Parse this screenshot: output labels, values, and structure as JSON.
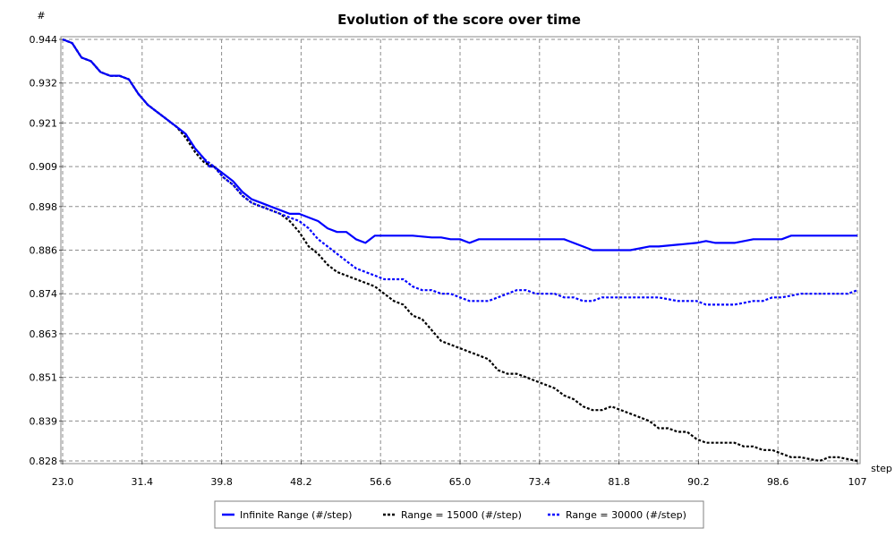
{
  "chart_data": {
    "type": "line",
    "title": "Evolution of the score over time",
    "xlabel": "step",
    "ylabel": "#",
    "xlim": [
      23.0,
      107.0
    ],
    "ylim": [
      0.828,
      0.944
    ],
    "x_ticks": [
      "23.0",
      "31.4",
      "39.8",
      "48.2",
      "56.6",
      "65.0",
      "73.4",
      "81.8",
      "90.2",
      "98.6",
      "107"
    ],
    "x_tick_values": [
      23.0,
      31.4,
      39.8,
      48.2,
      56.6,
      65.0,
      73.4,
      81.8,
      90.2,
      98.6,
      107.0
    ],
    "y_ticks": [
      "0.944",
      "0.932",
      "0.921",
      "0.909",
      "0.898",
      "0.886",
      "0.874",
      "0.863",
      "0.851",
      "0.839",
      "0.828"
    ],
    "y_tick_values": [
      0.944,
      0.932,
      0.921,
      0.909,
      0.898,
      0.886,
      0.874,
      0.863,
      0.851,
      0.839,
      0.828
    ],
    "grid": true,
    "legend_position": "bottom",
    "series": [
      {
        "name": "Infinite Range (#/step)",
        "color": "#0000ff",
        "style": "solid",
        "points": [
          [
            23,
            0.944
          ],
          [
            24,
            0.943
          ],
          [
            25,
            0.939
          ],
          [
            26,
            0.938
          ],
          [
            27,
            0.935
          ],
          [
            28,
            0.934
          ],
          [
            29,
            0.934
          ],
          [
            30,
            0.933
          ],
          [
            31,
            0.929
          ],
          [
            32,
            0.926
          ],
          [
            33,
            0.924
          ],
          [
            34,
            0.922
          ],
          [
            35,
            0.92
          ],
          [
            36,
            0.918
          ],
          [
            37,
            0.914
          ],
          [
            38,
            0.911
          ],
          [
            38.5,
            0.909
          ],
          [
            39,
            0.909
          ],
          [
            40,
            0.907
          ],
          [
            41,
            0.905
          ],
          [
            42,
            0.902
          ],
          [
            43,
            0.9
          ],
          [
            44,
            0.899
          ],
          [
            45,
            0.898
          ],
          [
            46,
            0.897
          ],
          [
            47,
            0.896
          ],
          [
            48,
            0.896
          ],
          [
            49,
            0.895
          ],
          [
            50,
            0.894
          ],
          [
            51,
            0.892
          ],
          [
            52,
            0.891
          ],
          [
            53,
            0.891
          ],
          [
            54,
            0.889
          ],
          [
            55,
            0.888
          ],
          [
            56,
            0.89
          ],
          [
            57,
            0.89
          ],
          [
            58,
            0.89
          ],
          [
            60,
            0.89
          ],
          [
            62,
            0.8895
          ],
          [
            63,
            0.8895
          ],
          [
            64,
            0.889
          ],
          [
            65,
            0.889
          ],
          [
            66,
            0.888
          ],
          [
            67,
            0.889
          ],
          [
            68,
            0.889
          ],
          [
            70,
            0.889
          ],
          [
            72,
            0.889
          ],
          [
            74,
            0.889
          ],
          [
            76,
            0.889
          ],
          [
            77,
            0.888
          ],
          [
            78,
            0.887
          ],
          [
            79,
            0.886
          ],
          [
            80,
            0.886
          ],
          [
            82,
            0.886
          ],
          [
            83,
            0.886
          ],
          [
            84,
            0.8865
          ],
          [
            85,
            0.887
          ],
          [
            86,
            0.887
          ],
          [
            88,
            0.8875
          ],
          [
            90,
            0.888
          ],
          [
            91,
            0.8885
          ],
          [
            92,
            0.888
          ],
          [
            94,
            0.888
          ],
          [
            96,
            0.889
          ],
          [
            98,
            0.889
          ],
          [
            99,
            0.889
          ],
          [
            100,
            0.89
          ],
          [
            102,
            0.89
          ],
          [
            104,
            0.89
          ],
          [
            107,
            0.89
          ]
        ]
      },
      {
        "name": "Range = 15000 (#/step)",
        "color": "#000000",
        "style": "dotted",
        "points": [
          [
            23,
            0.944
          ],
          [
            24,
            0.943
          ],
          [
            25,
            0.939
          ],
          [
            26,
            0.938
          ],
          [
            27,
            0.935
          ],
          [
            28,
            0.934
          ],
          [
            29,
            0.934
          ],
          [
            30,
            0.933
          ],
          [
            31,
            0.929
          ],
          [
            32,
            0.926
          ],
          [
            33,
            0.924
          ],
          [
            34,
            0.922
          ],
          [
            35,
            0.92
          ],
          [
            36,
            0.917
          ],
          [
            37,
            0.913
          ],
          [
            38,
            0.91
          ],
          [
            39,
            0.909
          ],
          [
            40,
            0.906
          ],
          [
            41,
            0.904
          ],
          [
            42,
            0.901
          ],
          [
            43,
            0.899
          ],
          [
            44,
            0.898
          ],
          [
            45,
            0.897
          ],
          [
            46,
            0.896
          ],
          [
            47,
            0.894
          ],
          [
            48,
            0.891
          ],
          [
            49,
            0.887
          ],
          [
            50,
            0.885
          ],
          [
            51,
            0.882
          ],
          [
            52,
            0.88
          ],
          [
            53,
            0.879
          ],
          [
            54,
            0.878
          ],
          [
            55,
            0.877
          ],
          [
            56,
            0.876
          ],
          [
            57,
            0.874
          ],
          [
            58,
            0.872
          ],
          [
            59,
            0.871
          ],
          [
            60,
            0.868
          ],
          [
            61,
            0.867
          ],
          [
            62,
            0.864
          ],
          [
            63,
            0.861
          ],
          [
            64,
            0.86
          ],
          [
            65,
            0.859
          ],
          [
            66,
            0.858
          ],
          [
            67,
            0.857
          ],
          [
            68,
            0.856
          ],
          [
            69,
            0.853
          ],
          [
            70,
            0.852
          ],
          [
            71,
            0.852
          ],
          [
            72,
            0.851
          ],
          [
            73,
            0.85
          ],
          [
            74,
            0.849
          ],
          [
            75,
            0.848
          ],
          [
            76,
            0.846
          ],
          [
            77,
            0.845
          ],
          [
            78,
            0.843
          ],
          [
            79,
            0.842
          ],
          [
            80,
            0.842
          ],
          [
            81,
            0.843
          ],
          [
            82,
            0.842
          ],
          [
            83,
            0.841
          ],
          [
            84,
            0.84
          ],
          [
            85,
            0.839
          ],
          [
            86,
            0.837
          ],
          [
            87,
            0.837
          ],
          [
            88,
            0.836
          ],
          [
            89,
            0.836
          ],
          [
            90,
            0.834
          ],
          [
            91,
            0.833
          ],
          [
            92,
            0.833
          ],
          [
            93,
            0.833
          ],
          [
            94,
            0.833
          ],
          [
            95,
            0.832
          ],
          [
            96,
            0.832
          ],
          [
            97,
            0.831
          ],
          [
            98,
            0.831
          ],
          [
            99,
            0.83
          ],
          [
            100,
            0.829
          ],
          [
            101,
            0.829
          ],
          [
            102,
            0.8285
          ],
          [
            103,
            0.828
          ],
          [
            104,
            0.829
          ],
          [
            105,
            0.829
          ],
          [
            106,
            0.8285
          ],
          [
            107,
            0.828
          ]
        ]
      },
      {
        "name": "Range = 30000 (#/step)",
        "color": "#0000ff",
        "style": "dotted",
        "points": [
          [
            23,
            0.944
          ],
          [
            24,
            0.943
          ],
          [
            25,
            0.939
          ],
          [
            26,
            0.938
          ],
          [
            27,
            0.935
          ],
          [
            28,
            0.934
          ],
          [
            29,
            0.934
          ],
          [
            30,
            0.933
          ],
          [
            31,
            0.929
          ],
          [
            32,
            0.926
          ],
          [
            33,
            0.924
          ],
          [
            34,
            0.922
          ],
          [
            35,
            0.92
          ],
          [
            36,
            0.918
          ],
          [
            37,
            0.914
          ],
          [
            38,
            0.911
          ],
          [
            39,
            0.909
          ],
          [
            40,
            0.906
          ],
          [
            41,
            0.904
          ],
          [
            42,
            0.901
          ],
          [
            43,
            0.899
          ],
          [
            44,
            0.898
          ],
          [
            45,
            0.897
          ],
          [
            46,
            0.896
          ],
          [
            47,
            0.895
          ],
          [
            48,
            0.894
          ],
          [
            49,
            0.892
          ],
          [
            50,
            0.889
          ],
          [
            51,
            0.887
          ],
          [
            52,
            0.885
          ],
          [
            53,
            0.883
          ],
          [
            54,
            0.881
          ],
          [
            55,
            0.88
          ],
          [
            56,
            0.879
          ],
          [
            57,
            0.878
          ],
          [
            58,
            0.878
          ],
          [
            59,
            0.878
          ],
          [
            60,
            0.876
          ],
          [
            61,
            0.875
          ],
          [
            62,
            0.875
          ],
          [
            63,
            0.874
          ],
          [
            64,
            0.874
          ],
          [
            65,
            0.873
          ],
          [
            66,
            0.872
          ],
          [
            67,
            0.872
          ],
          [
            68,
            0.872
          ],
          [
            69,
            0.873
          ],
          [
            70,
            0.874
          ],
          [
            71,
            0.875
          ],
          [
            72,
            0.875
          ],
          [
            73,
            0.874
          ],
          [
            74,
            0.874
          ],
          [
            75,
            0.874
          ],
          [
            76,
            0.873
          ],
          [
            77,
            0.873
          ],
          [
            78,
            0.872
          ],
          [
            79,
            0.872
          ],
          [
            80,
            0.873
          ],
          [
            81,
            0.873
          ],
          [
            82,
            0.873
          ],
          [
            83,
            0.873
          ],
          [
            84,
            0.873
          ],
          [
            85,
            0.873
          ],
          [
            86,
            0.873
          ],
          [
            87,
            0.8725
          ],
          [
            88,
            0.872
          ],
          [
            89,
            0.872
          ],
          [
            90,
            0.872
          ],
          [
            91,
            0.871
          ],
          [
            92,
            0.871
          ],
          [
            93,
            0.871
          ],
          [
            94,
            0.871
          ],
          [
            95,
            0.8715
          ],
          [
            96,
            0.872
          ],
          [
            97,
            0.872
          ],
          [
            98,
            0.873
          ],
          [
            99,
            0.873
          ],
          [
            100,
            0.8735
          ],
          [
            101,
            0.874
          ],
          [
            102,
            0.874
          ],
          [
            103,
            0.874
          ],
          [
            104,
            0.874
          ],
          [
            105,
            0.874
          ],
          [
            106,
            0.874
          ],
          [
            107,
            0.875
          ]
        ]
      }
    ]
  }
}
